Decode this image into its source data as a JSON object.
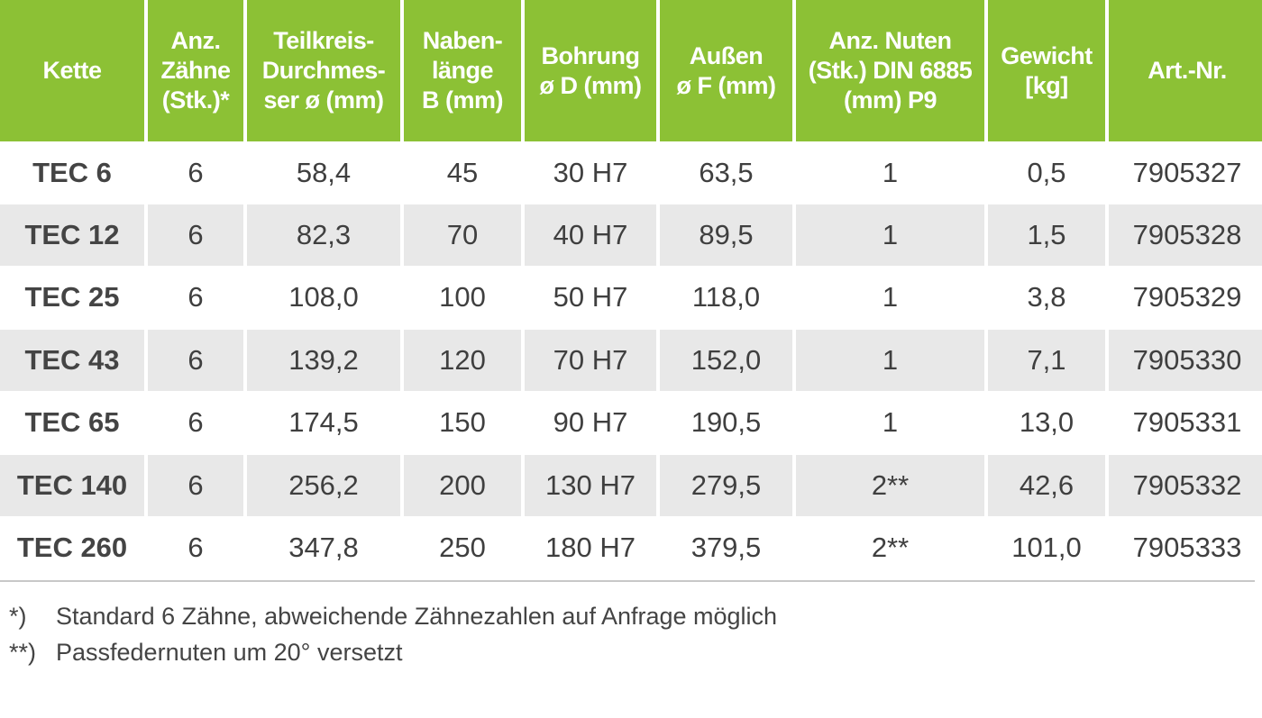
{
  "headers": {
    "kette": "Kette",
    "zaehne": [
      "Anz.",
      "Zähne",
      "(Stk.)*"
    ],
    "teilkreis": [
      "Teilkreis-",
      "Durchmes-",
      "ser ø (mm)"
    ],
    "nabe": [
      "Naben-",
      "länge",
      "B (mm)"
    ],
    "bohrung": [
      "Bohrung",
      "ø D (mm)"
    ],
    "aussen": [
      "Außen",
      "ø F (mm)"
    ],
    "nuten": [
      "Anz. Nuten",
      "(Stk.) DIN 6885",
      "(mm) P9"
    ],
    "gewicht": [
      "Gewicht",
      "[kg]"
    ],
    "artnr": "Art.-Nr."
  },
  "rows": [
    {
      "kette": "TEC 6",
      "zaehne": "6",
      "teilkreis": "58,4",
      "nabe": "45",
      "bohrung": "30 H7",
      "aussen": "63,5",
      "nuten": "1",
      "gewicht": "0,5",
      "artnr": "7905327"
    },
    {
      "kette": "TEC 12",
      "zaehne": "6",
      "teilkreis": "82,3",
      "nabe": "70",
      "bohrung": "40 H7",
      "aussen": "89,5",
      "nuten": "1",
      "gewicht": "1,5",
      "artnr": "7905328"
    },
    {
      "kette": "TEC 25",
      "zaehne": "6",
      "teilkreis": "108,0",
      "nabe": "100",
      "bohrung": "50 H7",
      "aussen": "118,0",
      "nuten": "1",
      "gewicht": "3,8",
      "artnr": "7905329"
    },
    {
      "kette": "TEC 43",
      "zaehne": "6",
      "teilkreis": "139,2",
      "nabe": "120",
      "bohrung": "70 H7",
      "aussen": "152,0",
      "nuten": "1",
      "gewicht": "7,1",
      "artnr": "7905330"
    },
    {
      "kette": "TEC 65",
      "zaehne": "6",
      "teilkreis": "174,5",
      "nabe": "150",
      "bohrung": "90 H7",
      "aussen": "190,5",
      "nuten": "1",
      "gewicht": "13,0",
      "artnr": "7905331"
    },
    {
      "kette": "TEC 140",
      "zaehne": "6",
      "teilkreis": "256,2",
      "nabe": "200",
      "bohrung": "130 H7",
      "aussen": "279,5",
      "nuten": "2**",
      "gewicht": "42,6",
      "artnr": "7905332"
    },
    {
      "kette": "TEC 260",
      "zaehne": "6",
      "teilkreis": "347,8",
      "nabe": "250",
      "bohrung": "180 H7",
      "aussen": "379,5",
      "nuten": "2**",
      "gewicht": "101,0",
      "artnr": "7905333"
    }
  ],
  "footnotes": [
    {
      "mark": "*)",
      "text": "Standard 6 Zähne, abweichende Zähnezahlen auf Anfrage möglich"
    },
    {
      "mark": "**)",
      "text": "Passfedernuten um 20° versetzt"
    }
  ],
  "colors": {
    "header_bg": "#8cc135",
    "header_text": "#ffffff",
    "stripe_bg": "#e8e8e8"
  }
}
